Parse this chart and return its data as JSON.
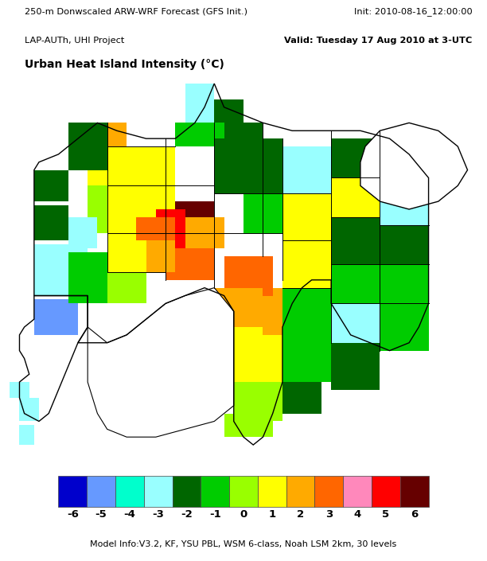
{
  "title_line1": "250-m Donwscaled ARW-WRF Forecast (GFS Init.)",
  "title_line1_right": "Init: 2010-08-16_12:00:00",
  "title_line2": "LAP-AUTh, UHI Project",
  "title_line2_right": "Valid: Tuesday 17 Aug 2010 at 3-UTC",
  "map_title": "Urban Heat Island Intensity (°C)",
  "footer": "Model Info:V3.2, KF, YSU PBL, WSM 6-class, Noah LSM 2km, 30 levels",
  "colorbar_labels": [
    "-6",
    "-5",
    "-4",
    "-3",
    "-2",
    "-1",
    "0",
    "1",
    "2",
    "3",
    "4",
    "5",
    "6"
  ],
  "colors": [
    "#0000CC",
    "#6699FF",
    "#00FFCC",
    "#99FFFF",
    "#006600",
    "#00CC00",
    "#99FF00",
    "#FFFF00",
    "#FFAA00",
    "#FF6600",
    "#FF88BB",
    "#FF0000",
    "#660000"
  ],
  "bg_color": "#FFFFFF"
}
